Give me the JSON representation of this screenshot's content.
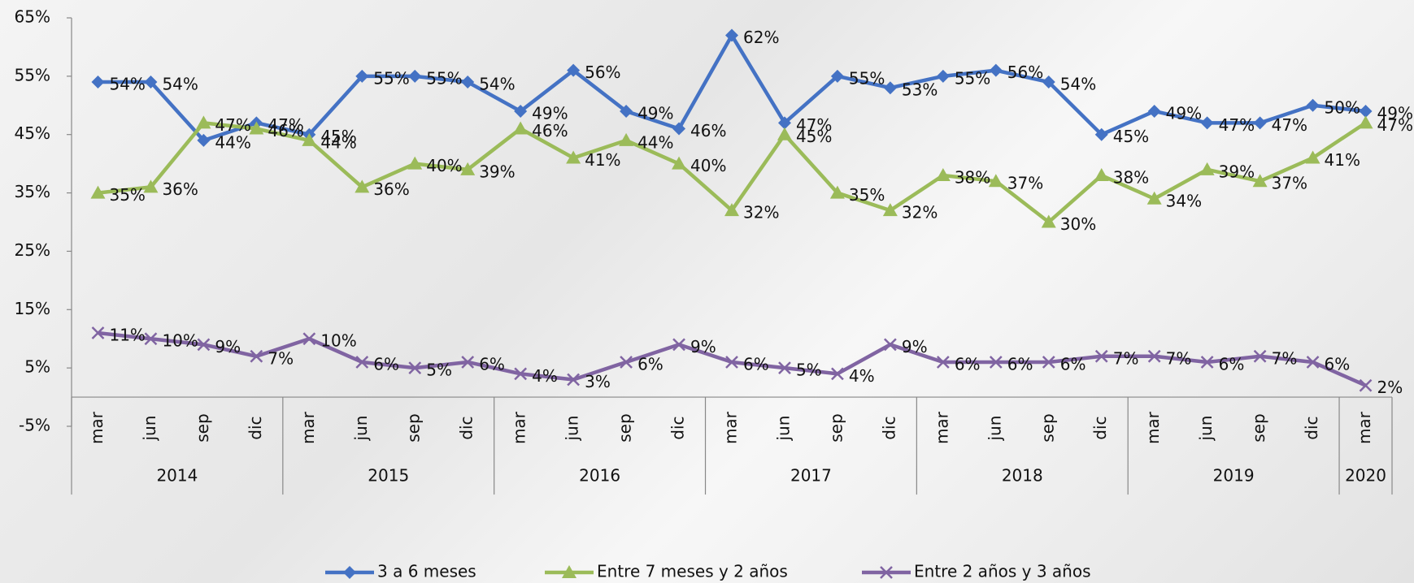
{
  "chart_data": {
    "type": "line",
    "categories": [
      "mar",
      "jun",
      "sep",
      "dic",
      "mar",
      "jun",
      "sep",
      "dic",
      "mar",
      "jun",
      "sep",
      "dic",
      "mar",
      "jun",
      "sep",
      "dic",
      "mar",
      "jun",
      "sep",
      "dic",
      "mar",
      "jun",
      "sep",
      "dic",
      "mar"
    ],
    "category_groups": [
      {
        "label": "2014",
        "size": 4
      },
      {
        "label": "2015",
        "size": 4
      },
      {
        "label": "2016",
        "size": 4
      },
      {
        "label": "2017",
        "size": 4
      },
      {
        "label": "2018",
        "size": 4
      },
      {
        "label": "2019",
        "size": 4
      },
      {
        "label": "2020",
        "size": 1
      }
    ],
    "ylim": [
      -5,
      65
    ],
    "yticks": [
      {
        "value": -5,
        "label": "-5%"
      },
      {
        "value": 5,
        "label": "5%"
      },
      {
        "value": 15,
        "label": "15%"
      },
      {
        "value": 25,
        "label": "25%"
      },
      {
        "value": 35,
        "label": "35%"
      },
      {
        "value": 45,
        "label": "45%"
      },
      {
        "value": 55,
        "label": "55%"
      },
      {
        "value": 65,
        "label": "65%"
      }
    ],
    "legend": "bottom",
    "series": [
      {
        "name": "3 a 6 meses",
        "color": "#4472c4",
        "marker": "diamond",
        "values": [
          54,
          54,
          44,
          47,
          45,
          55,
          55,
          54,
          49,
          56,
          49,
          46,
          62,
          47,
          55,
          53,
          55,
          56,
          54,
          45,
          49,
          47,
          47,
          50,
          49
        ],
        "value_labels": [
          "54%",
          "54%",
          "44%",
          "47%",
          "45%",
          "55%",
          "55%",
          "54%",
          "49%",
          "56%",
          "49%",
          "46%",
          "62%",
          "47%",
          "55%",
          "53%",
          "55%",
          "56%",
          "54%",
          "45%",
          "49%",
          "47%",
          "47%",
          "50%",
          "49%"
        ]
      },
      {
        "name": "Entre 7 meses y 2 años",
        "color": "#9bbb59",
        "marker": "triangle",
        "values": [
          35,
          36,
          47,
          46,
          44,
          36,
          40,
          39,
          46,
          41,
          44,
          40,
          32,
          45,
          35,
          32,
          38,
          37,
          30,
          38,
          34,
          39,
          37,
          41,
          47
        ],
        "value_labels": [
          "35%",
          "36%",
          "47%",
          "46%",
          "44%",
          "36%",
          "40%",
          "39%",
          "46%",
          "41%",
          "44%",
          "40%",
          "32%",
          "45%",
          "35%",
          "32%",
          "38%",
          "37%",
          "30%",
          "38%",
          "34%",
          "39%",
          "37%",
          "41%",
          "47%"
        ]
      },
      {
        "name": "Entre 2 años y 3 años",
        "color": "#8064a2",
        "marker": "x",
        "values": [
          11,
          10,
          9,
          7,
          10,
          6,
          5,
          6,
          4,
          3,
          6,
          9,
          6,
          5,
          4,
          9,
          6,
          6,
          6,
          7,
          7,
          6,
          7,
          6,
          2
        ],
        "value_labels": [
          "11%",
          "10%",
          "9%",
          "7%",
          "10%",
          "6%",
          "5%",
          "6%",
          "4%",
          "3%",
          "6%",
          "9%",
          "6%",
          "5%",
          "4%",
          "9%",
          "6%",
          "6%",
          "6%",
          "7%",
          "7%",
          "6%",
          "7%",
          "6%",
          "2%"
        ]
      }
    ]
  }
}
